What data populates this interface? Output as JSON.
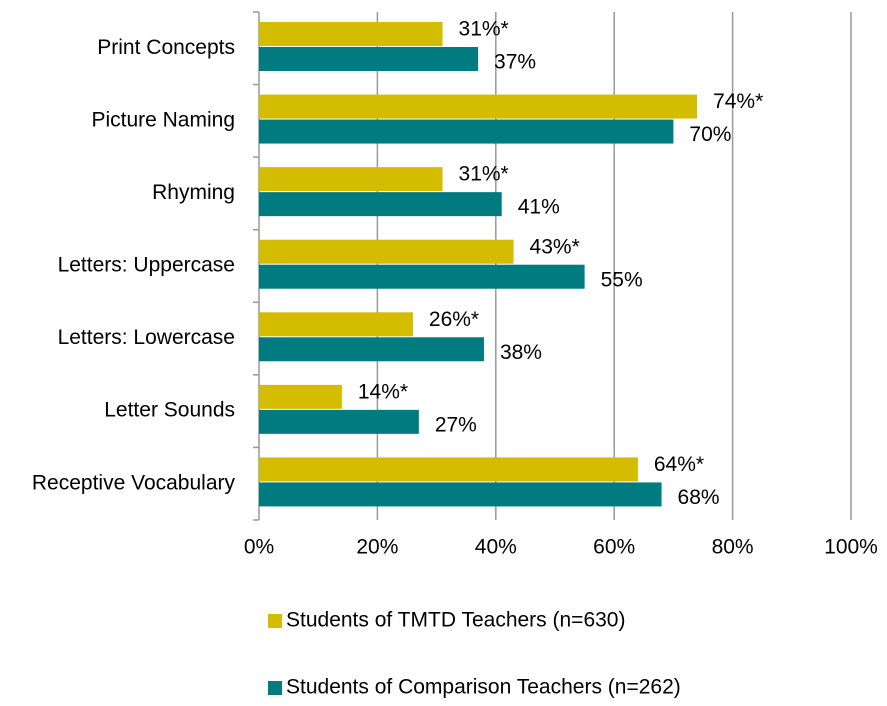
{
  "chart_data": {
    "type": "hbar",
    "categories": [
      "Print Concepts",
      "Picture Naming",
      "Rhyming",
      "Letters: Uppercase",
      "Letters: Lowercase",
      "Letter Sounds",
      "Receptive Vocabulary"
    ],
    "series": [
      {
        "name": "Students of TMTD Teachers (n=630)",
        "color": "#d4bc00",
        "values": [
          31,
          74,
          31,
          43,
          26,
          14,
          64
        ],
        "value_labels": [
          "31%*",
          "74%*",
          "31%*",
          "43%*",
          "26%*",
          "14%*",
          "64%*"
        ]
      },
      {
        "name": "Students of Comparison Teachers (n=262)",
        "color": "#007b80",
        "values": [
          37,
          70,
          41,
          55,
          38,
          27,
          68
        ],
        "value_labels": [
          "37%",
          "70%",
          "41%",
          "55%",
          "38%",
          "27%",
          "68%"
        ]
      }
    ],
    "xlim": [
      0,
      100
    ],
    "xticks": [
      {
        "value": 0,
        "label": "0%"
      },
      {
        "value": 20,
        "label": "20%"
      },
      {
        "value": 40,
        "label": "40%"
      },
      {
        "value": 60,
        "label": "60%"
      },
      {
        "value": 80,
        "label": "80%"
      },
      {
        "value": 100,
        "label": "100%"
      }
    ],
    "grid": true
  }
}
